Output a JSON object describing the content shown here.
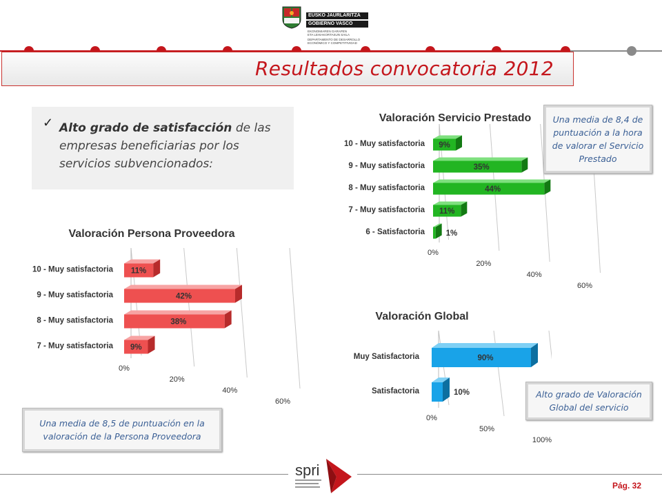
{
  "header": {
    "logo_line1": "EUSKO JAURLARITZA",
    "logo_line2": "GOBIERNO VASCO",
    "logo_small": [
      "EKONOMIAREN GARAPEN",
      "ETA LEHIAKORTASUN SAILA",
      "DEPARTAMENTO DE DESARROLLO",
      "ECONÓMICO Y COMPETITIVIDAD"
    ]
  },
  "title": "Resultados convocatoria 2012",
  "bullet": {
    "bold": "Alto grado de satisfacción",
    "text": " de las empresas beneficiarias por los servicios subvencionados:"
  },
  "callouts": {
    "servicio": "Una media de 8,4 de puntuación a la hora de valorar el Servicio Prestado",
    "global": "Alto grado de Valoración Global del servicio",
    "persona": "Una media de 8,5 de puntuación en la valoración de la Persona Proveedora"
  },
  "footer": {
    "brand": "spri",
    "page": "Pág. 32"
  },
  "colors": {
    "brand_red": "#c4161c",
    "green": "#22b522",
    "red_bar": "#ee5050",
    "blue_bar": "#19a3e8"
  },
  "chart_data": [
    {
      "id": "servicio",
      "type": "bar",
      "title": "Valoración Servicio Prestado",
      "categories": [
        "10 - Muy satisfactoria",
        "9 - Muy satisfactoria",
        "8 - Muy satisfactoria",
        "7 - Muy satisfactoria",
        "6 - Satisfactoria"
      ],
      "values": [
        9,
        35,
        44,
        11,
        1
      ],
      "labels": [
        "9%",
        "35%",
        "44%",
        "11%",
        "1%"
      ],
      "xticks": [
        "0%",
        "20%",
        "40%",
        "60%"
      ],
      "xlim": [
        0,
        60
      ],
      "color": "green"
    },
    {
      "id": "persona",
      "type": "bar",
      "title": "Valoración Persona Proveedora",
      "categories": [
        "10 - Muy satisfactoria",
        "9 - Muy satisfactoria",
        "8 - Muy satisfactoria",
        "7 - Muy satisfactoria"
      ],
      "values": [
        11,
        42,
        38,
        9
      ],
      "labels": [
        "11%",
        "42%",
        "38%",
        "9%"
      ],
      "xticks": [
        "0%",
        "20%",
        "40%",
        "60%"
      ],
      "xlim": [
        0,
        60
      ],
      "color": "red"
    },
    {
      "id": "global",
      "type": "bar",
      "title": "Valoración Global",
      "categories": [
        "Muy Satisfactoria",
        "Satisfactoria"
      ],
      "values": [
        90,
        10
      ],
      "labels": [
        "90%",
        "10%"
      ],
      "xticks": [
        "0%",
        "50%",
        "100%"
      ],
      "xlim": [
        0,
        100
      ],
      "color": "blue"
    }
  ]
}
